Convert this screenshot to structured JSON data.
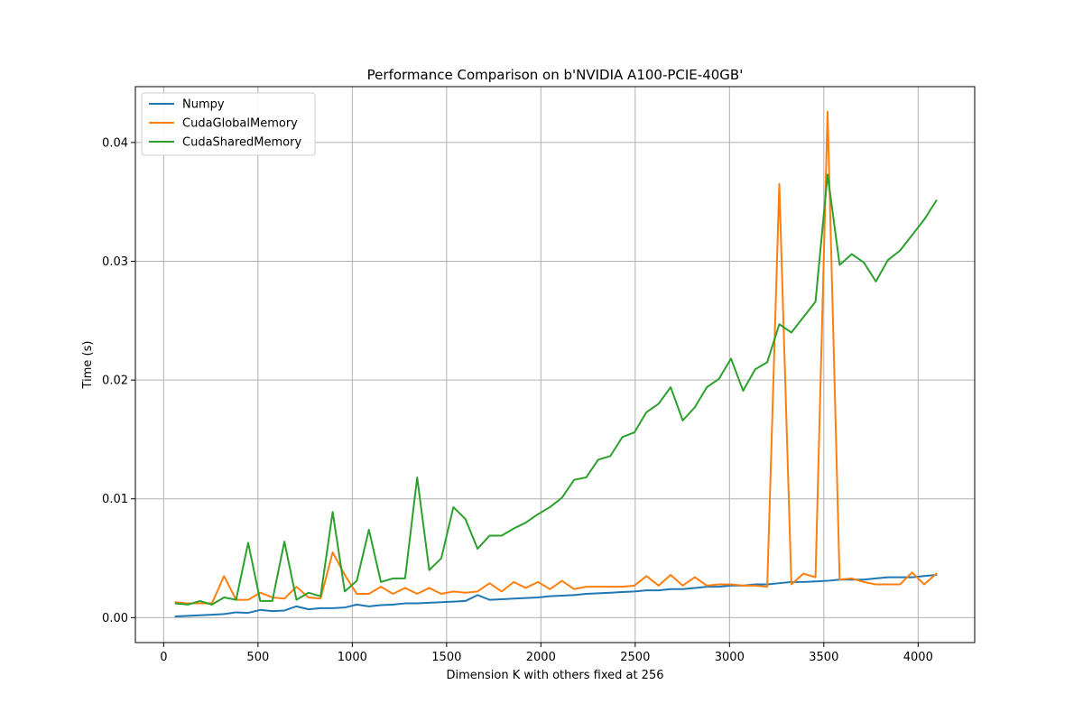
{
  "chart_data": {
    "type": "line",
    "title": "Performance Comparison on b'NVIDIA A100-PCIE-40GB'",
    "xlabel": "Dimension K with others fixed at 256",
    "ylabel": "Time (s)",
    "xlim": [
      -150,
      4300
    ],
    "ylim": [
      -0.0021,
      0.0447
    ],
    "xticks": [
      0,
      500,
      1000,
      1500,
      2000,
      2500,
      3000,
      3500,
      4000
    ],
    "yticks": [
      0.0,
      0.01,
      0.02,
      0.03,
      0.04
    ],
    "xtick_labels": [
      "0",
      "500",
      "1000",
      "1500",
      "2000",
      "2500",
      "3000",
      "3500",
      "4000"
    ],
    "ytick_labels": [
      "0.00",
      "0.01",
      "0.02",
      "0.03",
      "0.04"
    ],
    "grid": true,
    "legend_position": "top-left",
    "x": [
      64,
      128,
      192,
      256,
      320,
      384,
      448,
      512,
      576,
      640,
      704,
      768,
      832,
      896,
      960,
      1024,
      1088,
      1152,
      1216,
      1280,
      1344,
      1408,
      1472,
      1536,
      1600,
      1664,
      1728,
      1792,
      1856,
      1920,
      1984,
      2048,
      2112,
      2176,
      2240,
      2304,
      2368,
      2432,
      2496,
      2560,
      2624,
      2688,
      2752,
      2816,
      2880,
      2944,
      3008,
      3072,
      3136,
      3200,
      3264,
      3328,
      3392,
      3456,
      3520,
      3584,
      3648,
      3712,
      3776,
      3840,
      3904,
      3968,
      4032,
      4096
    ],
    "series": [
      {
        "name": "Numpy",
        "color": "#1f77b4",
        "values": [
          0.0001,
          0.00015,
          0.0002,
          0.00025,
          0.0003,
          0.00045,
          0.0004,
          0.00065,
          0.00055,
          0.0006,
          0.00095,
          0.0007,
          0.0008,
          0.0008,
          0.00085,
          0.0011,
          0.00095,
          0.00105,
          0.0011,
          0.0012,
          0.0012,
          0.00125,
          0.0013,
          0.00135,
          0.0014,
          0.0019,
          0.0015,
          0.00155,
          0.0016,
          0.00165,
          0.0017,
          0.0018,
          0.00185,
          0.0019,
          0.002,
          0.00205,
          0.0021,
          0.00215,
          0.0022,
          0.0023,
          0.0023,
          0.0024,
          0.0024,
          0.0025,
          0.0026,
          0.0026,
          0.0027,
          0.0027,
          0.0028,
          0.0028,
          0.0029,
          0.003,
          0.003,
          0.00305,
          0.0031,
          0.0032,
          0.0032,
          0.0032,
          0.0033,
          0.0034,
          0.0034,
          0.0034,
          0.0035,
          0.0036
        ]
      },
      {
        "name": "CudaGlobalMemory",
        "color": "#ff7f0e",
        "values": [
          0.0013,
          0.0012,
          0.0012,
          0.0012,
          0.0035,
          0.0015,
          0.0015,
          0.0021,
          0.0017,
          0.0016,
          0.0026,
          0.0017,
          0.0016,
          0.0055,
          0.0036,
          0.002,
          0.002,
          0.0026,
          0.002,
          0.0025,
          0.002,
          0.0025,
          0.002,
          0.0022,
          0.0021,
          0.0022,
          0.0029,
          0.0022,
          0.003,
          0.0025,
          0.003,
          0.0024,
          0.0031,
          0.0024,
          0.0026,
          0.0026,
          0.0026,
          0.0026,
          0.0027,
          0.0035,
          0.0027,
          0.0036,
          0.0027,
          0.0034,
          0.0027,
          0.0028,
          0.0028,
          0.0027,
          0.0027,
          0.0026,
          0.0365,
          0.0028,
          0.0037,
          0.0034,
          0.0426,
          0.0032,
          0.0033,
          0.003,
          0.0028,
          0.0028,
          0.0028,
          0.0038,
          0.0028,
          0.0037
        ]
      },
      {
        "name": "CudaSharedMemory",
        "color": "#2ca02c",
        "values": [
          0.0012,
          0.0011,
          0.0014,
          0.0011,
          0.0017,
          0.0015,
          0.0063,
          0.0014,
          0.0014,
          0.0064,
          0.0015,
          0.0021,
          0.0018,
          0.0089,
          0.0022,
          0.0031,
          0.0074,
          0.003,
          0.0033,
          0.0033,
          0.0118,
          0.004,
          0.005,
          0.0093,
          0.0083,
          0.0058,
          0.0069,
          0.0069,
          0.0075,
          0.008,
          0.0087,
          0.0093,
          0.0101,
          0.0116,
          0.0118,
          0.0133,
          0.0136,
          0.0152,
          0.0156,
          0.0173,
          0.018,
          0.0194,
          0.0166,
          0.0177,
          0.0194,
          0.0201,
          0.0218,
          0.0191,
          0.0209,
          0.0215,
          0.0247,
          0.024,
          0.0253,
          0.0266,
          0.0373,
          0.0297,
          0.0306,
          0.0299,
          0.0283,
          0.0301,
          0.0309,
          0.0322,
          0.0335,
          0.0351
        ]
      }
    ]
  }
}
